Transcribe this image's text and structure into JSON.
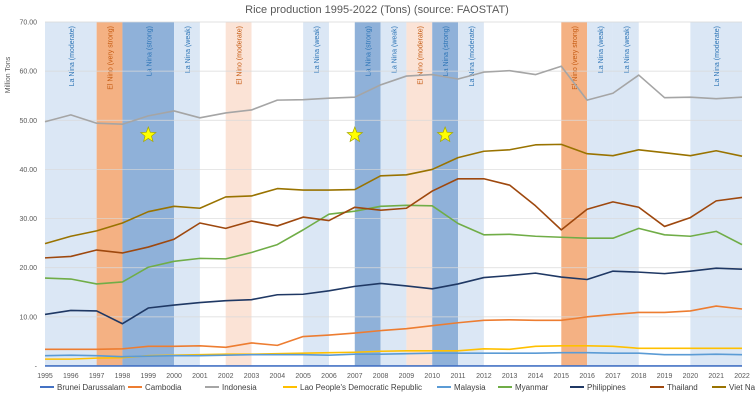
{
  "chart_data": {
    "type": "line",
    "title": "Rice production 1995-2022 (Tons)  (source: FAOSTAT)",
    "ylabel": "Million Tons",
    "ylim": [
      0,
      70
    ],
    "yticks": [
      "-",
      "10.00",
      "20.00",
      "30.00",
      "40.00",
      "50.00",
      "60.00",
      "70.00"
    ],
    "grid": true,
    "legend_position": "bottom",
    "x": [
      1995,
      1996,
      1997,
      1998,
      1999,
      2000,
      2001,
      2002,
      2003,
      2004,
      2005,
      2006,
      2007,
      2008,
      2009,
      2010,
      2011,
      2012,
      2013,
      2014,
      2015,
      2016,
      2017,
      2018,
      2019,
      2020,
      2021,
      2022
    ],
    "series": [
      {
        "name": "Brunei Darussalam",
        "color": "#4472c4",
        "values": [
          0.02,
          0.02,
          0.02,
          0.02,
          0.02,
          0.02,
          0.02,
          0.02,
          0.02,
          0.02,
          0.02,
          0.02,
          0.02,
          0.02,
          0.02,
          0.02,
          0.02,
          0.02,
          0.02,
          0.02,
          0.02,
          0.02,
          0.02,
          0.02,
          0.02,
          0.02,
          0.02,
          0.02
        ]
      },
      {
        "name": "Cambodia",
        "color": "#ed7d31",
        "values": [
          3.4,
          3.4,
          3.4,
          3.5,
          4.0,
          4.0,
          4.1,
          3.8,
          4.7,
          4.2,
          6.0,
          6.3,
          6.7,
          7.2,
          7.6,
          8.2,
          8.8,
          9.3,
          9.4,
          9.3,
          9.3,
          10.0,
          10.5,
          10.9,
          10.9,
          11.2,
          12.2,
          11.6
        ]
      },
      {
        "name": "Indonesia",
        "color": "#a5a5a5",
        "values": [
          49.7,
          51.1,
          49.4,
          49.2,
          50.9,
          51.9,
          50.5,
          51.5,
          52.1,
          54.1,
          54.2,
          54.5,
          54.7,
          57.2,
          59.0,
          59.3,
          58.4,
          59.8,
          60.1,
          59.3,
          61.0,
          54.1,
          55.5,
          59.2,
          54.6,
          54.7,
          54.4,
          54.7
        ]
      },
      {
        "name": "Lao People's Democratic Republic",
        "color": "#ffc000",
        "values": [
          1.4,
          1.4,
          1.6,
          1.7,
          2.1,
          2.2,
          2.3,
          2.4,
          2.4,
          2.5,
          2.6,
          2.7,
          2.8,
          3.0,
          3.1,
          3.1,
          3.1,
          3.5,
          3.4,
          4.0,
          4.1,
          4.1,
          4.0,
          3.6,
          3.6,
          3.6,
          3.6,
          3.6
        ]
      },
      {
        "name": "Malaysia",
        "color": "#5b9bd5",
        "values": [
          2.1,
          2.2,
          2.1,
          1.9,
          2.0,
          2.1,
          2.1,
          2.2,
          2.3,
          2.3,
          2.3,
          2.2,
          2.4,
          2.4,
          2.5,
          2.6,
          2.6,
          2.6,
          2.6,
          2.6,
          2.7,
          2.7,
          2.6,
          2.6,
          2.3,
          2.3,
          2.4,
          2.3
        ]
      },
      {
        "name": "Myanmar",
        "color": "#70ad47",
        "values": [
          17.9,
          17.7,
          16.7,
          17.1,
          20.1,
          21.3,
          21.9,
          21.8,
          23.1,
          24.7,
          27.7,
          30.9,
          31.5,
          32.5,
          32.7,
          32.6,
          29.0,
          26.7,
          26.8,
          26.4,
          26.2,
          26.0,
          26.0,
          28.0,
          26.7,
          26.4,
          27.4,
          24.7
        ]
      },
      {
        "name": "Philippines",
        "color": "#1f3864",
        "values": [
          10.5,
          11.3,
          11.2,
          8.6,
          11.8,
          12.4,
          12.9,
          13.3,
          13.5,
          14.5,
          14.6,
          15.3,
          16.2,
          16.8,
          16.3,
          15.7,
          16.7,
          18.0,
          18.4,
          18.9,
          18.1,
          17.6,
          19.3,
          19.1,
          18.8,
          19.3,
          19.9,
          19.7
        ]
      },
      {
        "name": "Thailand",
        "color": "#9e480e",
        "values": [
          22.0,
          22.3,
          23.6,
          23.0,
          24.2,
          25.8,
          29.1,
          28.0,
          29.5,
          28.5,
          30.3,
          29.6,
          32.3,
          31.7,
          32.1,
          35.6,
          38.1,
          38.1,
          36.8,
          32.6,
          27.7,
          31.9,
          33.4,
          32.3,
          28.4,
          30.2,
          33.6,
          34.3
        ]
      },
      {
        "name": "Viet Nam",
        "color": "#997300",
        "values": [
          24.9,
          26.4,
          27.5,
          29.1,
          31.4,
          32.5,
          32.1,
          34.4,
          34.6,
          36.1,
          35.8,
          35.8,
          35.9,
          38.7,
          38.9,
          40.0,
          42.4,
          43.7,
          44.0,
          45.0,
          45.1,
          43.2,
          42.8,
          44.0,
          43.4,
          42.8,
          43.8,
          42.7
        ]
      }
    ],
    "bands": [
      {
        "from": 1995,
        "to": 1997,
        "color": "#dbe7f5",
        "label_color": "#2e75b6",
        "label": "La Nina (moderate)"
      },
      {
        "from": 1997,
        "to": 1998,
        "color": "#f4b183",
        "label_color": "#c55a11",
        "label": "El Nino (very strong)"
      },
      {
        "from": 1998,
        "to": 2000,
        "color": "#8fb1d9",
        "label_color": "#2e75b6",
        "label": "La Nina (strong)"
      },
      {
        "from": 2000,
        "to": 2001,
        "color": "#dbe7f5",
        "label_color": "#2e75b6",
        "label": "La Nina (weak)"
      },
      {
        "from": 2002,
        "to": 2003,
        "color": "#fbe3d6",
        "label_color": "#c55a11",
        "label": "El Nino (moderate)"
      },
      {
        "from": 2005,
        "to": 2006,
        "color": "#dbe7f5",
        "label_color": "#2e75b6",
        "label": "La Nina (weak)"
      },
      {
        "from": 2007,
        "to": 2008,
        "color": "#8fb1d9",
        "label_color": "#2e75b6",
        "label": "La Nina (strong)"
      },
      {
        "from": 2008,
        "to": 2009,
        "color": "#dbe7f5",
        "label_color": "#2e75b6",
        "label": "La Nina (weak)"
      },
      {
        "from": 2009,
        "to": 2010,
        "color": "#fbe3d6",
        "label_color": "#c55a11",
        "label": "El Nino (moderate)"
      },
      {
        "from": 2010,
        "to": 2011,
        "color": "#8fb1d9",
        "label_color": "#2e75b6",
        "label": "La Nina (strong)"
      },
      {
        "from": 2011,
        "to": 2012,
        "color": "#dbe7f5",
        "label_color": "#2e75b6",
        "label": "La Nina (moderate)"
      },
      {
        "from": 2015,
        "to": 2016,
        "color": "#f4b183",
        "label_color": "#c55a11",
        "label": "El Nino (very strong)"
      },
      {
        "from": 2016,
        "to": 2017,
        "color": "#dbe7f5",
        "label_color": "#2e75b6",
        "label": "La Nina (weak)"
      },
      {
        "from": 2017,
        "to": 2018,
        "color": "#dbe7f5",
        "label_color": "#2e75b6",
        "label": "La Nina (weak)"
      },
      {
        "from": 2020,
        "to": 2022,
        "color": "#dbe7f5",
        "label_color": "#2e75b6",
        "label": "La Nina (moderate)"
      }
    ],
    "stars": [
      {
        "x": 1999,
        "y": 47
      },
      {
        "x": 2007,
        "y": 47
      },
      {
        "x": 2010.5,
        "y": 47
      }
    ]
  }
}
